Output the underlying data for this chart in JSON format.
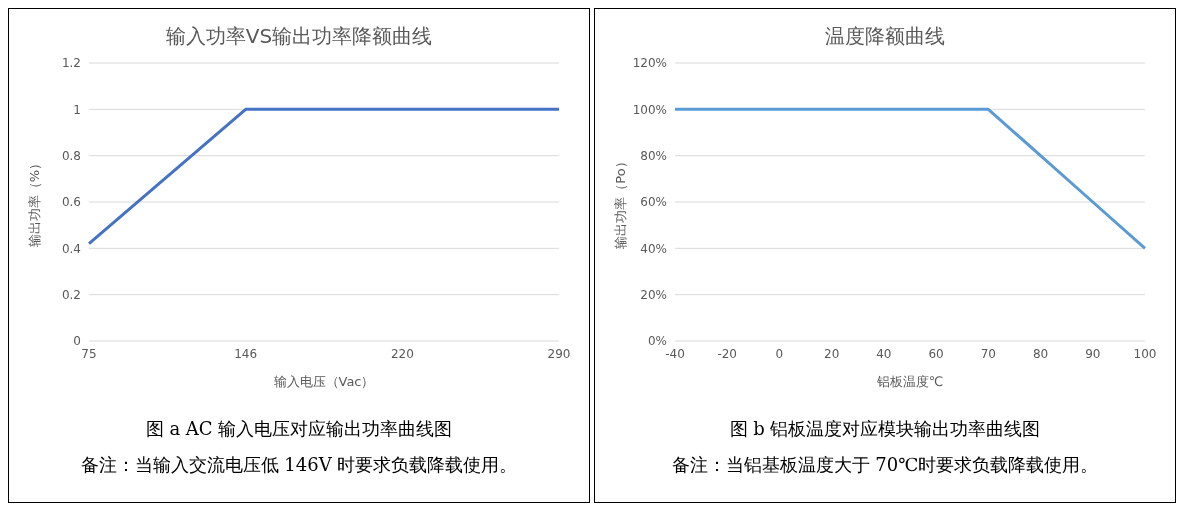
{
  "chart_data": [
    {
      "type": "line",
      "title": "输入功率VS输出功率降额曲线",
      "xlabel": "输入电压（Vac）",
      "ylabel": "输出功率（%）",
      "categories": [
        "75",
        "146",
        "220",
        "290"
      ],
      "series": [
        {
          "color": "#4472c4",
          "values": [
            0.42,
            1,
            1,
            1
          ]
        }
      ],
      "ylim": [
        0,
        1.2
      ],
      "yticks": [
        0,
        0.2,
        0.4,
        0.6,
        0.8,
        1,
        1.2
      ],
      "grid": "y",
      "marker": "none",
      "line_style": "solid",
      "annotations": [
        "图 a AC 输入电压对应输出功率曲线图",
        "备注：当输入交流电压低 146V 时要求负载降载使用。"
      ]
    },
    {
      "type": "line",
      "title": "温度降额曲线",
      "xlabel": "铝板温度℃",
      "ylabel": "输出功率（Po）",
      "categories": [
        "-40",
        "-20",
        "0",
        "20",
        "40",
        "60",
        "70",
        "80",
        "90",
        "100"
      ],
      "series": [
        {
          "color": "#5b9bd5",
          "values": [
            100,
            100,
            100,
            100,
            100,
            100,
            100,
            80,
            60,
            40
          ]
        }
      ],
      "ylim": [
        0,
        120
      ],
      "yticks": [
        {
          "value": 0,
          "label": "0%"
        },
        {
          "value": 20,
          "label": "20%"
        },
        {
          "value": 40,
          "label": "40%"
        },
        {
          "value": 60,
          "label": "60%"
        },
        {
          "value": 80,
          "label": "80%"
        },
        {
          "value": 100,
          "label": "100%"
        },
        {
          "value": 120,
          "label": "120%"
        }
      ],
      "grid": "y",
      "marker": "none",
      "line_style": "solid",
      "annotations": [
        "图 b 铝板温度对应模块输出功率曲线图",
        "备注：当铝基板温度大于 70℃时要求负载降载使用。"
      ]
    }
  ]
}
